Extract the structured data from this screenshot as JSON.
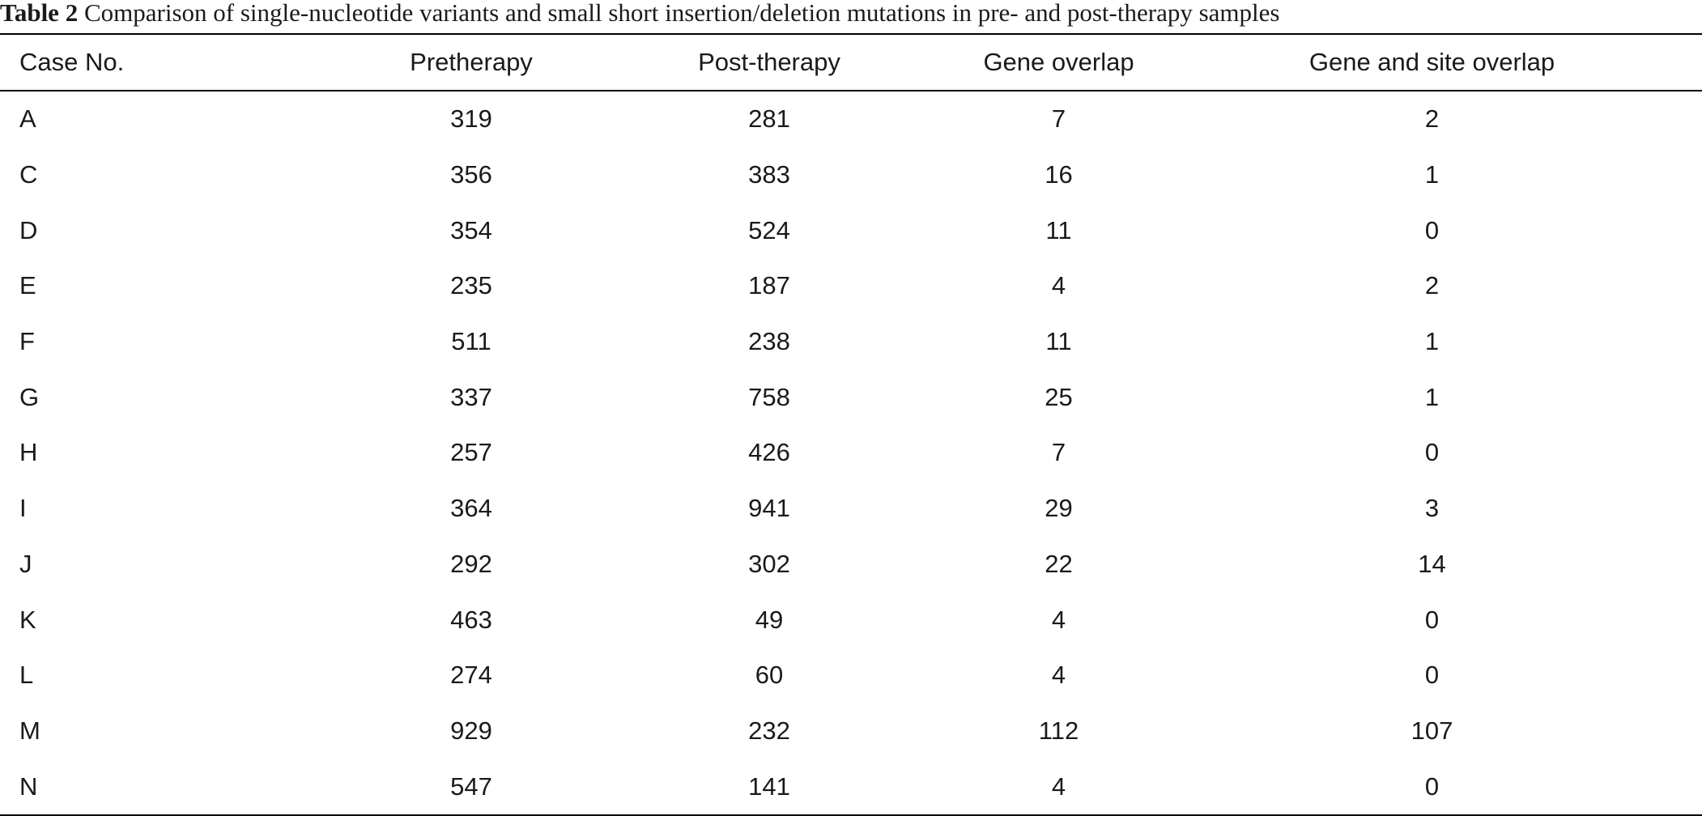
{
  "caption": {
    "label": "Table 2",
    "text": "Comparison of single-nucleotide variants and small short insertion/deletion mutations in pre- and post-therapy samples"
  },
  "table": {
    "headers": {
      "case": "Case No.",
      "pre": "Pretherapy",
      "post": "Post-therapy",
      "gene": "Gene overlap",
      "site": "Gene and site overlap"
    },
    "rows": [
      {
        "case": "A",
        "pre": "319",
        "post": "281",
        "gene": "7",
        "site": "2"
      },
      {
        "case": "C",
        "pre": "356",
        "post": "383",
        "gene": "16",
        "site": "1"
      },
      {
        "case": "D",
        "pre": "354",
        "post": "524",
        "gene": "11",
        "site": "0"
      },
      {
        "case": "E",
        "pre": "235",
        "post": "187",
        "gene": "4",
        "site": "2"
      },
      {
        "case": "F",
        "pre": "511",
        "post": "238",
        "gene": "11",
        "site": "1"
      },
      {
        "case": "G",
        "pre": "337",
        "post": "758",
        "gene": "25",
        "site": "1"
      },
      {
        "case": "H",
        "pre": "257",
        "post": "426",
        "gene": "7",
        "site": "0"
      },
      {
        "case": "I",
        "pre": "364",
        "post": "941",
        "gene": "29",
        "site": "3"
      },
      {
        "case": "J",
        "pre": "292",
        "post": "302",
        "gene": "22",
        "site": "14"
      },
      {
        "case": "K",
        "pre": "463",
        "post": "49",
        "gene": "4",
        "site": "0"
      },
      {
        "case": "L",
        "pre": "274",
        "post": "60",
        "gene": "4",
        "site": "0"
      },
      {
        "case": "M",
        "pre": "929",
        "post": "232",
        "gene": "112",
        "site": "107"
      },
      {
        "case": "N",
        "pre": "547",
        "post": "141",
        "gene": "4",
        "site": "0"
      }
    ]
  }
}
